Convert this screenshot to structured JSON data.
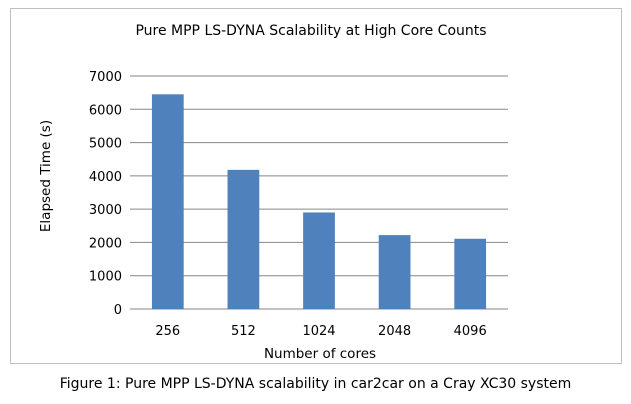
{
  "chart_data": {
    "type": "bar",
    "title": "Pure MPP LS-DYNA Scalability at High Core Counts",
    "xlabel": "Number of cores",
    "ylabel": "Elapsed Time (s)",
    "categories": [
      "256",
      "512",
      "1024",
      "2048",
      "4096"
    ],
    "values": [
      6450,
      4180,
      2900,
      2220,
      2110
    ],
    "ylim": [
      0,
      7000
    ],
    "yticks": [
      "0",
      "1000",
      "2000",
      "3000",
      "4000",
      "5000",
      "6000",
      "7000"
    ],
    "grid": true,
    "legend": "none",
    "bar_color": "#4f81bd",
    "gridline_color": "#868686"
  },
  "caption": "Figure 1: Pure MPP LS-DYNA scalability in car2car on a Cray XC30 system"
}
